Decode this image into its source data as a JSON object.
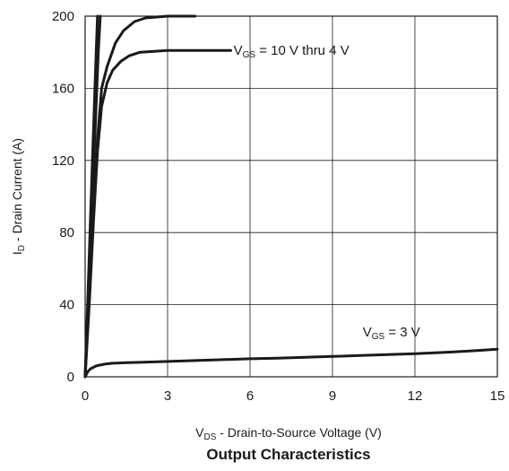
{
  "chart_data": {
    "type": "line",
    "title": "Output Characteristics",
    "xlabel": {
      "main": "V",
      "sub": "DS",
      "rest": " - Drain-to-Source Voltage (V)"
    },
    "ylabel": {
      "main": "I",
      "sub": "D",
      "rest": " - Drain Current (A)"
    },
    "xlim": [
      0,
      15
    ],
    "ylim": [
      0,
      200
    ],
    "xticks": [
      "0",
      "3",
      "6",
      "9",
      "12",
      "15"
    ],
    "yticks": [
      "0",
      "40",
      "80",
      "120",
      "160",
      "200"
    ],
    "grid": true,
    "line_color": "#1a1a1a",
    "annotations": [
      {
        "main": "V",
        "sub": "GS",
        "rest": " = 10 V thru 4 V",
        "x": 5.4,
        "y": 181
      },
      {
        "main": "V",
        "sub": "GS",
        "rest": " = 3 V",
        "x": 10.1,
        "y": 25
      }
    ],
    "series": [
      {
        "x": [
          0,
          0.1,
          0.2,
          0.3,
          0.4,
          0.45
        ],
        "y": [
          0,
          45,
          90,
          135,
          180,
          200
        ]
      },
      {
        "x": [
          0,
          0.12,
          0.24,
          0.36,
          0.48,
          0.55
        ],
        "y": [
          0,
          45,
          90,
          135,
          180,
          200
        ]
      },
      {
        "x": [
          0,
          0.15,
          0.3,
          0.45,
          0.6,
          0.8,
          1.1,
          1.4,
          1.8,
          2.2,
          3.0,
          4.0
        ],
        "y": [
          0,
          45,
          90,
          132,
          160,
          172,
          185,
          192,
          197,
          199,
          200,
          200
        ]
      },
      {
        "x": [
          0,
          0.15,
          0.3,
          0.45,
          0.6,
          0.8,
          1.0,
          1.3,
          1.6,
          2.0,
          2.5,
          3.0,
          3.5,
          4.0,
          4.5,
          5.0,
          5.3
        ],
        "y": [
          0,
          40,
          85,
          125,
          150,
          163,
          170,
          175,
          178,
          180,
          180.5,
          181,
          181,
          181,
          181,
          181,
          181
        ]
      },
      {
        "x": [
          0,
          0.1,
          0.2,
          0.4,
          0.7,
          1.0,
          1.5,
          2.0,
          3.0,
          4.0,
          5.0,
          6.0,
          7.0,
          8.0,
          9.0,
          10.0,
          11.0,
          12.0,
          13.0,
          14.0,
          15.0
        ],
        "y": [
          0,
          3,
          4.5,
          6,
          7,
          7.5,
          7.8,
          8,
          8.5,
          9,
          9.5,
          10,
          10.3,
          10.8,
          11.3,
          11.8,
          12.3,
          12.8,
          13.5,
          14.3,
          15.3
        ]
      }
    ]
  }
}
